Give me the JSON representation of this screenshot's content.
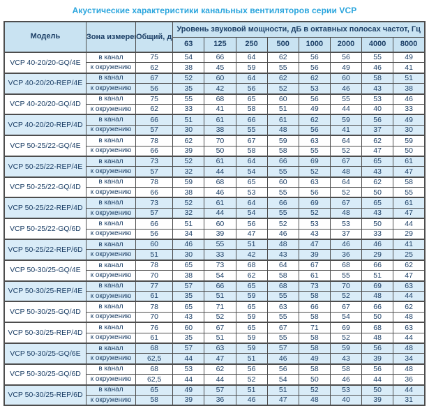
{
  "title": "Акустические характеристики канальных вентиляторов  серии VCP",
  "table": {
    "col_model": "Модель",
    "col_zone": "Зона измерения",
    "col_total": "Общий, дБА",
    "col_freq_header": "Уровень звуковой мощности, дБ в октавных полосах частот, Гц",
    "freqs": [
      "63",
      "125",
      "250",
      "500",
      "1000",
      "2000",
      "4000",
      "8000"
    ],
    "zone_labels": [
      "в канал",
      "к окружению"
    ],
    "shaded_color": "#d9ecf8",
    "header_color": "#c9e3f2",
    "title_color": "#2aa5dd",
    "text_color": "#1c3f66",
    "rows": [
      {
        "model": "VCP 40-20/20-GQ/4E",
        "shaded": false,
        "duct": {
          "total": "75",
          "values": [
            "54",
            "66",
            "64",
            "62",
            "56",
            "56",
            "55",
            "49"
          ]
        },
        "ambient": {
          "total": "62",
          "values": [
            "38",
            "45",
            "59",
            "55",
            "56",
            "49",
            "46",
            "41"
          ]
        }
      },
      {
        "model": "VCP 40-20/20-REP/4E",
        "shaded": true,
        "duct": {
          "total": "67",
          "values": [
            "52",
            "60",
            "64",
            "62",
            "62",
            "60",
            "58",
            "51"
          ]
        },
        "ambient": {
          "total": "56",
          "values": [
            "35",
            "42",
            "56",
            "52",
            "53",
            "46",
            "43",
            "38"
          ]
        }
      },
      {
        "model": "VCP 40-20/20-GQ/4D",
        "shaded": false,
        "duct": {
          "total": "75",
          "values": [
            "55",
            "68",
            "65",
            "60",
            "56",
            "55",
            "53",
            "46"
          ]
        },
        "ambient": {
          "total": "62",
          "values": [
            "33",
            "41",
            "58",
            "51",
            "49",
            "44",
            "40",
            "33"
          ]
        }
      },
      {
        "model": "VCP 40-20/20-REP/4D",
        "shaded": true,
        "duct": {
          "total": "66",
          "values": [
            "51",
            "61",
            "66",
            "61",
            "62",
            "59",
            "56",
            "49"
          ]
        },
        "ambient": {
          "total": "57",
          "values": [
            "30",
            "38",
            "55",
            "48",
            "56",
            "41",
            "37",
            "30"
          ]
        }
      },
      {
        "model": "VCP 50-25/22-GQ/4E",
        "shaded": false,
        "duct": {
          "total": "78",
          "values": [
            "62",
            "70",
            "67",
            "59",
            "63",
            "64",
            "62",
            "59"
          ]
        },
        "ambient": {
          "total": "66",
          "values": [
            "39",
            "50",
            "58",
            "58",
            "55",
            "52",
            "47",
            "50"
          ]
        }
      },
      {
        "model": "VCP 50-25/22-REP/4E",
        "shaded": true,
        "duct": {
          "total": "73",
          "values": [
            "52",
            "61",
            "64",
            "66",
            "69",
            "67",
            "65",
            "61"
          ]
        },
        "ambient": {
          "total": "57",
          "values": [
            "32",
            "44",
            "54",
            "55",
            "52",
            "48",
            "43",
            "47"
          ]
        }
      },
      {
        "model": "VCP 50-25/22-GQ/4D",
        "shaded": false,
        "duct": {
          "total": "78",
          "values": [
            "59",
            "68",
            "65",
            "60",
            "63",
            "64",
            "62",
            "58"
          ]
        },
        "ambient": {
          "total": "66",
          "values": [
            "38",
            "46",
            "53",
            "55",
            "56",
            "52",
            "50",
            "55"
          ]
        }
      },
      {
        "model": "VCP 50-25/22-REP/4D",
        "shaded": true,
        "duct": {
          "total": "73",
          "values": [
            "52",
            "61",
            "64",
            "66",
            "69",
            "67",
            "65",
            "61"
          ]
        },
        "ambient": {
          "total": "57",
          "values": [
            "32",
            "44",
            "54",
            "55",
            "52",
            "48",
            "43",
            "47"
          ]
        }
      },
      {
        "model": "VCP 50-25/22-GQ/6D",
        "shaded": false,
        "duct": {
          "total": "66",
          "values": [
            "51",
            "60",
            "56",
            "52",
            "53",
            "53",
            "50",
            "44"
          ]
        },
        "ambient": {
          "total": "56",
          "values": [
            "34",
            "39",
            "47",
            "46",
            "43",
            "37",
            "33",
            "29"
          ]
        }
      },
      {
        "model": "VCP 50-25/22-REP/6D",
        "shaded": true,
        "duct": {
          "total": "60",
          "values": [
            "46",
            "55",
            "51",
            "48",
            "47",
            "46",
            "46",
            "41"
          ]
        },
        "ambient": {
          "total": "51",
          "values": [
            "30",
            "33",
            "42",
            "43",
            "39",
            "36",
            "29",
            "25"
          ]
        }
      },
      {
        "model": "VCP 50-30/25-GQ/4E",
        "shaded": false,
        "duct": {
          "total": "78",
          "values": [
            "65",
            "73",
            "68",
            "64",
            "67",
            "68",
            "66",
            "62"
          ]
        },
        "ambient": {
          "total": "70",
          "values": [
            "38",
            "54",
            "62",
            "58",
            "61",
            "55",
            "51",
            "47"
          ]
        }
      },
      {
        "model": "VCP 50-30/25-REP/4E",
        "shaded": true,
        "duct": {
          "total": "77",
          "values": [
            "57",
            "66",
            "65",
            "68",
            "73",
            "70",
            "69",
            "63"
          ]
        },
        "ambient": {
          "total": "61",
          "values": [
            "35",
            "51",
            "59",
            "55",
            "58",
            "52",
            "48",
            "44"
          ]
        }
      },
      {
        "model": "VCP 50-30/25-GQ/4D",
        "shaded": false,
        "duct": {
          "total": "78",
          "values": [
            "65",
            "71",
            "65",
            "63",
            "66",
            "67",
            "66",
            "62"
          ]
        },
        "ambient": {
          "total": "70",
          "values": [
            "43",
            "52",
            "59",
            "55",
            "58",
            "54",
            "50",
            "48"
          ]
        }
      },
      {
        "model": "VCP 50-30/25-REP/4D",
        "shaded": false,
        "duct": {
          "total": "76",
          "values": [
            "60",
            "67",
            "65",
            "67",
            "71",
            "69",
            "68",
            "63"
          ]
        },
        "ambient": {
          "total": "61",
          "values": [
            "35",
            "51",
            "59",
            "55",
            "58",
            "52",
            "48",
            "44"
          ]
        }
      },
      {
        "model": "VCP 50-30/25-GQ/6E",
        "shaded": true,
        "duct": {
          "total": "68",
          "values": [
            "57",
            "63",
            "59",
            "57",
            "58",
            "59",
            "56",
            "48"
          ]
        },
        "ambient": {
          "total": "62,5",
          "values": [
            "44",
            "47",
            "51",
            "46",
            "49",
            "43",
            "39",
            "34"
          ]
        }
      },
      {
        "model": "VCP 50-30/25-GQ/6D",
        "shaded": false,
        "duct": {
          "total": "68",
          "values": [
            "53",
            "62",
            "56",
            "56",
            "58",
            "58",
            "56",
            "48"
          ]
        },
        "ambient": {
          "total": "62,5",
          "values": [
            "44",
            "44",
            "52",
            "54",
            "50",
            "46",
            "44",
            "36"
          ]
        }
      },
      {
        "model": "VCP 50-30/25-REP/6D",
        "shaded": true,
        "duct": {
          "total": "65",
          "values": [
            "49",
            "57",
            "51",
            "51",
            "52",
            "53",
            "50",
            "44"
          ]
        },
        "ambient": {
          "total": "58",
          "values": [
            "39",
            "36",
            "46",
            "47",
            "48",
            "40",
            "39",
            "31"
          ]
        }
      }
    ]
  }
}
